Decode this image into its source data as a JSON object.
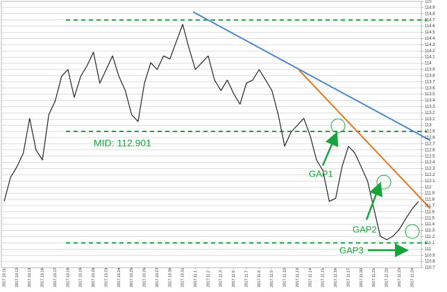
{
  "chart_data": {
    "type": "line",
    "color": "#222222",
    "categories": [
      "2017.10.11",
      null,
      "2017.10.12",
      null,
      "2017.10.13",
      null,
      "2017.10.16",
      null,
      "2017.10.17",
      null,
      "2017.10.18",
      null,
      "2017.10.19",
      null,
      "2017.10.20",
      null,
      "2017.10.23",
      null,
      "2017.10.24",
      null,
      "2017.10.25",
      null,
      "2017.10.26",
      null,
      "2017.10.27",
      null,
      "2017.10.30",
      null,
      "2017.10.31",
      null,
      "2017.11.1",
      null,
      "2017.11.2",
      null,
      "2017.11.3",
      null,
      "2017.11.6",
      null,
      "2017.11.7",
      null,
      "2017.11.8",
      null,
      "2017.11.9",
      null,
      "2017.11.10",
      null,
      "2017.11.13",
      null,
      "2017.11.14",
      null,
      "2017.11.15",
      null,
      "2017.11.16",
      null,
      "2017.11.17",
      null,
      "2017.11.20",
      null,
      "2017.11.21",
      null,
      "2017.11.22",
      null,
      "2017.11.23",
      null,
      "2017.11.24",
      null
    ],
    "values": [
      111.77,
      112.16,
      112.33,
      112.55,
      113.11,
      112.6,
      112.44,
      113.17,
      113.39,
      113.79,
      113.9,
      113.45,
      113.79,
      113.96,
      114.18,
      113.68,
      113.9,
      114.12,
      113.79,
      113.56,
      113.17,
      113.06,
      113.68,
      114.01,
      113.9,
      114.12,
      114.07,
      114.35,
      114.63,
      114.24,
      113.9,
      114.01,
      114.12,
      113.73,
      113.56,
      113.73,
      113.51,
      113.34,
      113.68,
      113.73,
      113.9,
      113.73,
      113.56,
      113.17,
      112.66,
      112.89,
      113.0,
      113.11,
      112.83,
      112.44,
      112.27,
      111.77,
      111.82,
      112.33,
      112.66,
      112.55,
      112.33,
      112.1,
      111.65,
      111.21,
      111.15,
      111.21,
      111.32,
      111.49,
      111.65,
      111.77
    ],
    "ylim": [
      110.7,
      115
    ],
    "yticks": [
      110.7,
      110.8,
      110.9,
      111,
      111.1,
      111.2,
      111.3,
      111.4,
      111.5,
      111.6,
      111.7,
      111.8,
      111.9,
      112,
      112.1,
      112.2,
      112.3,
      112.4,
      112.5,
      112.6,
      112.7,
      112.8,
      112.9,
      113,
      113.1,
      113.2,
      113.3,
      113.4,
      113.5,
      113.6,
      113.7,
      113.8,
      113.9,
      114,
      114.1,
      114.2,
      114.3,
      114.4,
      114.5,
      114.6,
      114.7,
      114.8,
      114.9,
      115
    ],
    "grid": true,
    "hlines": [
      {
        "value": 114.7
      },
      {
        "value": 112.901,
        "label": "MID: 112.901"
      },
      {
        "value": 111.1
      }
    ],
    "hline_color": "#1aa33a",
    "annotations": [
      "GAP1",
      "GAP2",
      "GAP3"
    ]
  }
}
